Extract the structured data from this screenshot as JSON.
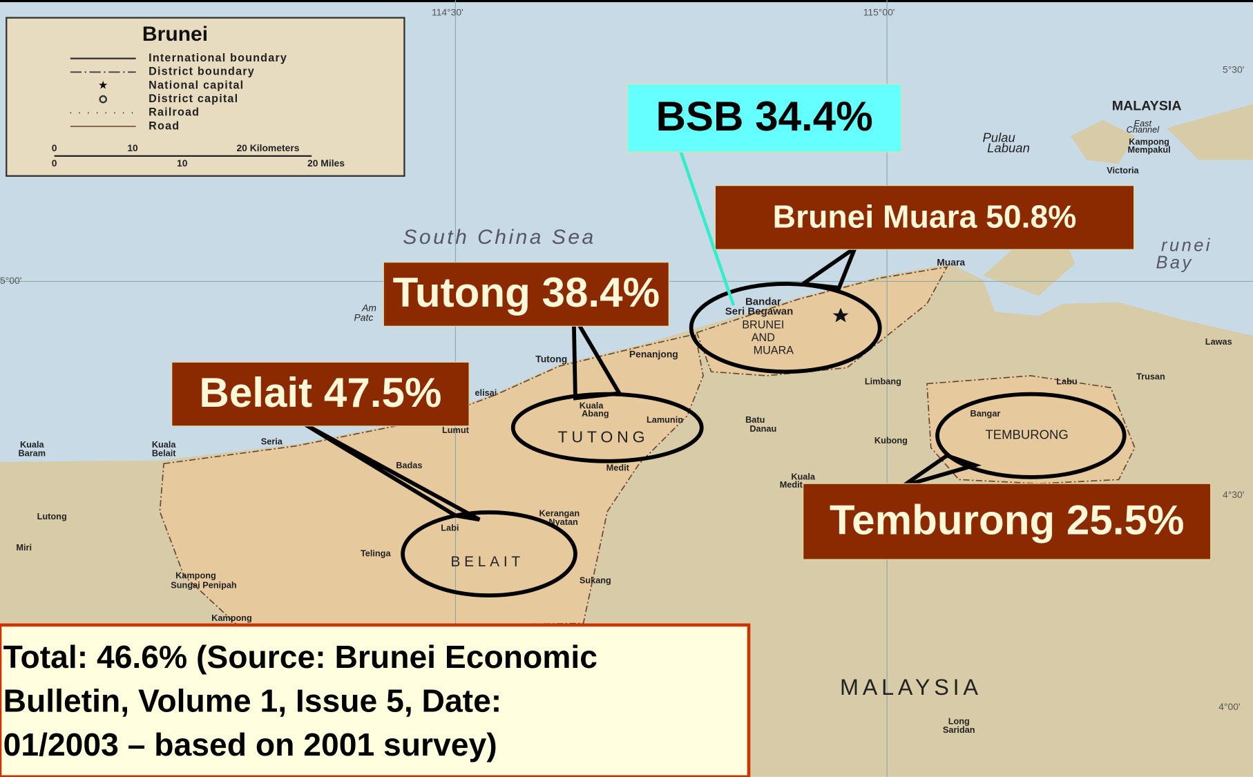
{
  "legend": {
    "title": "Brunei",
    "items": [
      "International boundary",
      "District boundary",
      "National capital",
      "District capital",
      "Railroad",
      "Road"
    ],
    "scale": {
      "km": [
        "0",
        "10",
        "20 Kilometers"
      ],
      "miles": [
        "0",
        "10",
        "20 Miles"
      ]
    }
  },
  "grid_labels": [
    "114°30'",
    "115°00'",
    "5°30'",
    "5°00'",
    "4°30'",
    "4°00'"
  ],
  "map_labels": [
    "South China Sea",
    "MALAYSIA",
    "MALAYSIA",
    "Pulau",
    "Labuan",
    "East",
    "Channel",
    "Kampong",
    "Mempakul",
    "Victoria",
    "runei",
    "Bay",
    "Muara",
    "Bandar",
    "Seri Begawan",
    "BRUNEI",
    "AND",
    "MUARA",
    "Tutong",
    "Penanjong",
    "Kuala",
    "Abang",
    "Lamunin",
    "TUTONG",
    "Lumut",
    "Medit",
    "Limbang",
    "Batu",
    "Danau",
    "Labu",
    "Trusan",
    "Lawas",
    "Bangar",
    "TEMBURONG",
    "Kubong",
    "Kuala",
    "Baram",
    "Kuala",
    "Belait",
    "Seria",
    "Badas",
    "Kerangan",
    "Nyatan",
    "BELAIT",
    "Telinga",
    "Labi",
    "Sukang",
    "Lutong",
    "Miri",
    "Kampong",
    "Sungai Penipah",
    "Kampong",
    "Long",
    "Saridan",
    "Kuala",
    "Medit",
    "Am",
    "Patc",
    "elisai"
  ],
  "callouts": [
    {
      "text": "BSB 34.4%"
    },
    {
      "text": "Brunei Muara 50.8%"
    },
    {
      "text": "Tutong 38.4%"
    },
    {
      "text": "Belait 47.5%"
    },
    {
      "text": "Temburong 25.5%"
    }
  ],
  "footer": {
    "lines": [
      "Total: 46.6%  (Source: Brunei Economic",
      "Bulletin, Volume 1, Issue 5, Date:",
      "01/2003 – based on 2001 survey)"
    ]
  }
}
